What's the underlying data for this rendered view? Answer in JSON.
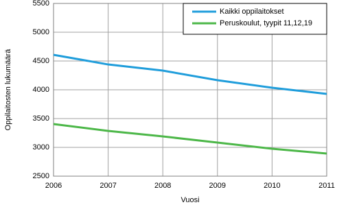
{
  "chart_data": {
    "type": "line",
    "x_label": "Vuosi",
    "y_label": "Oppilaitosten lukumäärä",
    "x": [
      2006,
      2007,
      2008,
      2009,
      2010,
      2011
    ],
    "series": [
      {
        "name": "Kaikki oppilaitokset",
        "color": "#1f9ddb",
        "values": [
          4607,
          4440,
          4333,
          4167,
          4036,
          3929
        ]
      },
      {
        "name": "Peruskoulut, tyypit 11,12,19",
        "color": "#4cb748",
        "values": [
          3405,
          3286,
          3190,
          3083,
          2976,
          2893
        ]
      }
    ],
    "xlim": [
      2006,
      2011
    ],
    "xticks": [
      2006,
      2007,
      2008,
      2009,
      2010,
      2011
    ],
    "ylim": [
      2500,
      5500
    ],
    "yticks": [
      2500,
      3000,
      3500,
      4000,
      4500,
      5000,
      5500
    ],
    "grid": true,
    "legend": "top-right"
  }
}
